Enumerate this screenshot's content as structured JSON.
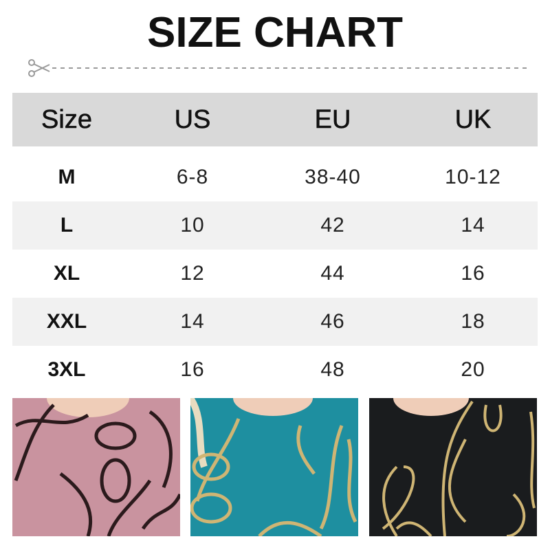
{
  "title": "SIZE CHART",
  "icons": {
    "cut": "scissors-icon"
  },
  "table": {
    "headers": [
      "Size",
      "US",
      "EU",
      "UK"
    ],
    "rows": [
      [
        "M",
        "6-8",
        "38-40",
        "10-12"
      ],
      [
        "L",
        "10",
        "42",
        "14"
      ],
      [
        "XL",
        "12",
        "44",
        "16"
      ],
      [
        "XXL",
        "14",
        "46",
        "18"
      ],
      [
        "3XL",
        "16",
        "48",
        "20"
      ]
    ]
  },
  "colors": {
    "header_bg": "#d9d9d9",
    "alt_row_bg": "#f1f1f1",
    "swatches": [
      "#c9939f",
      "#1e8fa0",
      "#1a1c1e"
    ],
    "ribbon": [
      "#2b1a1c",
      "#cfb574",
      "#cfb574"
    ]
  }
}
